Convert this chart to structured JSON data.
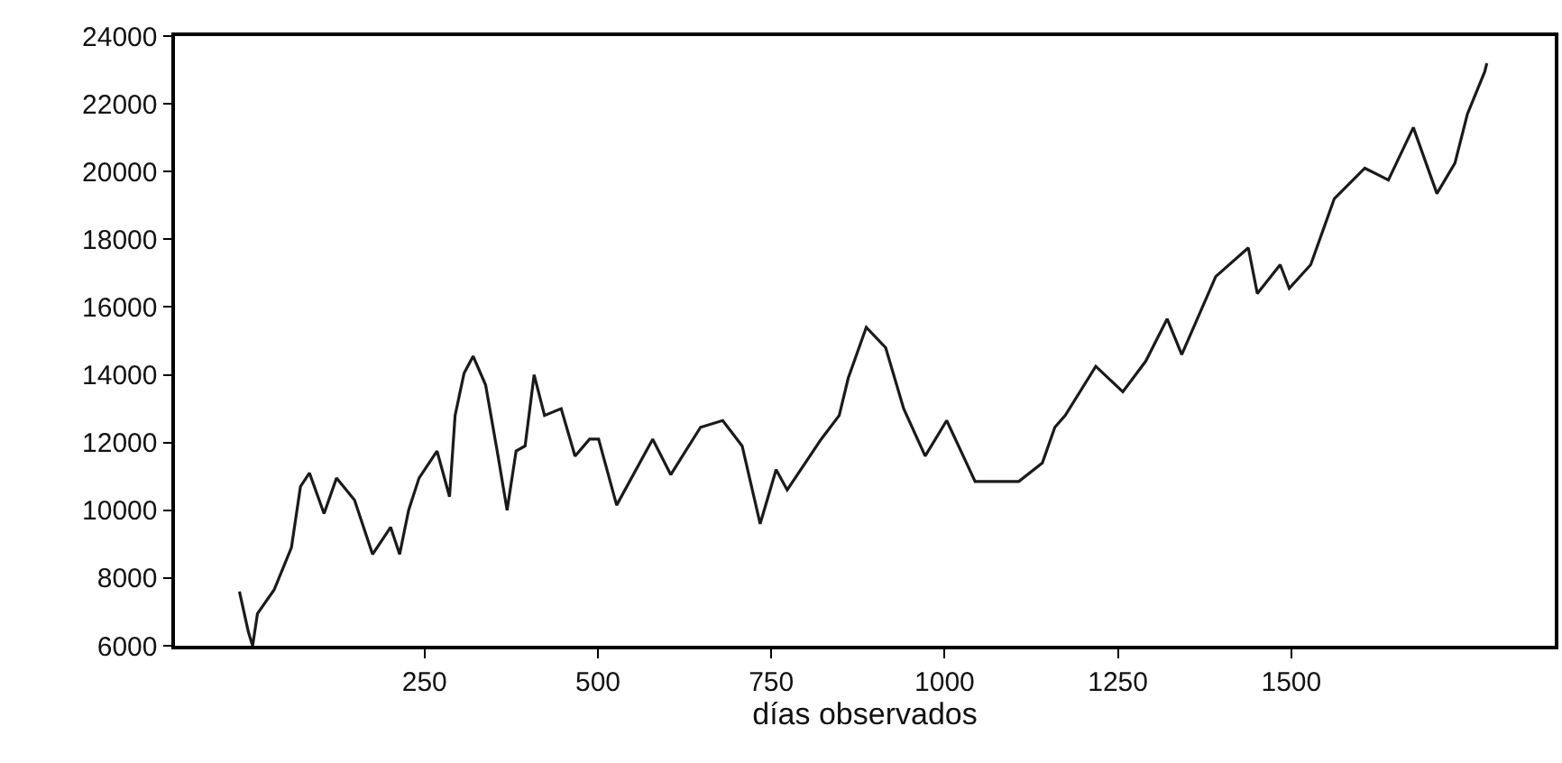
{
  "chart_data": {
    "type": "line",
    "xlabel": "días observados",
    "x": [
      -17,
      -4,
      2,
      9,
      33,
      58,
      71,
      84,
      105,
      123,
      149,
      175,
      201,
      214,
      227,
      242,
      268,
      286,
      294,
      307,
      320,
      338,
      356,
      369,
      382,
      395,
      408,
      423,
      447,
      467,
      488,
      501,
      527,
      579,
      605,
      648,
      680,
      708,
      734,
      757,
      773,
      822,
      848,
      861,
      887,
      915,
      941,
      972,
      1003,
      1044,
      1107,
      1141,
      1159,
      1174,
      1218,
      1257,
      1290,
      1321,
      1342,
      1391,
      1438,
      1451,
      1484,
      1497,
      1528,
      1562,
      1606,
      1640,
      1676,
      1710,
      1736,
      1754,
      1779,
      1782
    ],
    "series": [
      {
        "color": "#1a1a1a",
        "values": [
          7600,
          6400,
          6000,
          6950,
          7650,
          8900,
          10700,
          11100,
          9900,
          10950,
          10300,
          8700,
          9500,
          8700,
          10000,
          10950,
          11750,
          10400,
          12800,
          14050,
          14550,
          13700,
          11600,
          10000,
          11750,
          11900,
          14000,
          12800,
          13000,
          11600,
          12100,
          12100,
          10150,
          12100,
          11050,
          12450,
          12650,
          11900,
          9600,
          11200,
          10600,
          12100,
          12800,
          13900,
          15400,
          14800,
          13000,
          11600,
          12650,
          10850,
          10850,
          11400,
          12450,
          12800,
          14250,
          13500,
          14400,
          15650,
          14600,
          16900,
          17750,
          16400,
          17250,
          16550,
          17250,
          19200,
          20100,
          19750,
          21300,
          19350,
          20250,
          21700,
          22950,
          23200
        ]
      }
    ],
    "xlim": [
      -110,
      1880
    ],
    "xticks": [
      250,
      500,
      750,
      1000,
      1250,
      1500
    ],
    "ylim": [
      6000,
      24000
    ],
    "yticks": [
      6000,
      8000,
      10000,
      12000,
      14000,
      16000,
      18000,
      20000,
      22000,
      24000
    ],
    "marker": "none",
    "line_style": "solid"
  }
}
